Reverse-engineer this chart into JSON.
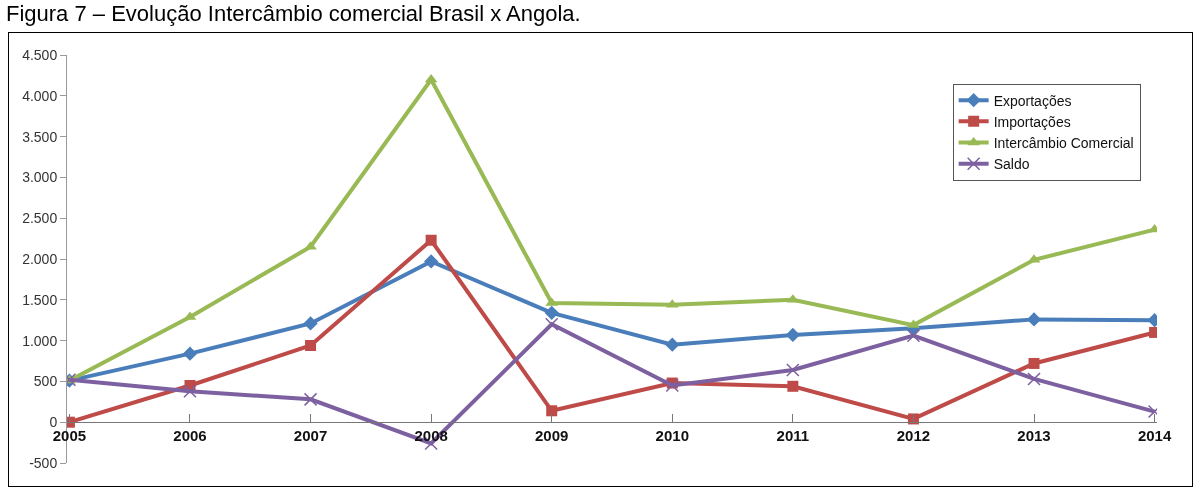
{
  "chart_data": {
    "type": "line",
    "title": "Figura 7 – Evolução Intercâmbio comercial Brasil x Angola.",
    "categories": [
      "2005",
      "2006",
      "2007",
      "2008",
      "2009",
      "2010",
      "2011",
      "2012",
      "2013",
      "2014"
    ],
    "series": [
      {
        "name": "Exportações",
        "color": "#4a7ebb",
        "marker": "diamond",
        "values": [
          510,
          840,
          1210,
          1970,
          1340,
          950,
          1070,
          1150,
          1260,
          1250
        ]
      },
      {
        "name": "Importações",
        "color": "#be4b48",
        "marker": "square",
        "values": [
          0,
          450,
          940,
          2230,
          140,
          480,
          440,
          40,
          720,
          1100
        ]
      },
      {
        "name": "Intercâmbio Comercial",
        "color": "#98b954",
        "marker": "triangle",
        "values": [
          510,
          1290,
          2150,
          4200,
          1460,
          1440,
          1500,
          1190,
          1990,
          2360
        ]
      },
      {
        "name": "Saldo",
        "color": "#7d60a0",
        "marker": "cross",
        "values": [
          520,
          380,
          280,
          -260,
          1200,
          450,
          640,
          1060,
          530,
          130
        ]
      }
    ],
    "ylim": [
      -500,
      4500
    ],
    "yticks": [
      {
        "value": -500,
        "label": "-500"
      },
      0,
      500,
      {
        "value": 1000,
        "label": "1.000"
      },
      {
        "value": 1500,
        "label": "1.500"
      },
      {
        "value": 2000,
        "label": "2.000"
      },
      {
        "value": 2500,
        "label": "2.500"
      },
      {
        "value": 3000,
        "label": "3.000"
      },
      {
        "value": 3500,
        "label": "3.500"
      },
      {
        "value": 4000,
        "label": "4.000"
      },
      {
        "value": 4500,
        "label": "4.500"
      }
    ],
    "grid": false,
    "legend": "top right",
    "line_style": "solid"
  }
}
